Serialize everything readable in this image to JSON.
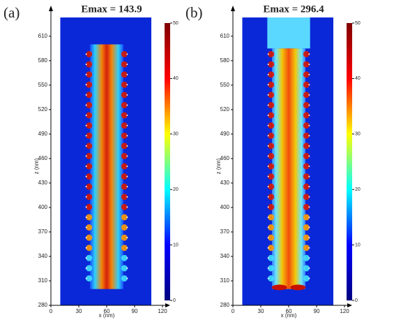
{
  "chart_data": [
    {
      "type": "heatmap",
      "panel": "(a)",
      "title": "Emax = 143.9",
      "xlabel": "x (nm)",
      "ylabel": "z (nm)",
      "xlim": [
        0,
        120
      ],
      "xticks": [
        0,
        30,
        60,
        90,
        120
      ],
      "ylim": [
        280,
        633
      ],
      "yticks": [
        280,
        310,
        340,
        370,
        400,
        430,
        460,
        490,
        520,
        550,
        580,
        610
      ],
      "clim": [
        0,
        50
      ],
      "cticks": [
        0,
        10,
        20,
        30,
        40,
        50
      ],
      "colors": [
        "#00007f",
        "#0000ff",
        "#00ffff",
        "#ffff00",
        "#ff0000",
        "#7f0000"
      ]
    },
    {
      "type": "heatmap",
      "panel": "(b)",
      "title": "Emax = 296.4",
      "xlabel": "x (nm)",
      "ylabel": "z (nm)",
      "xlim": [
        0,
        120
      ],
      "xticks": [
        0,
        30,
        60,
        90,
        120
      ],
      "ylim": [
        280,
        633
      ],
      "yticks": [
        280,
        310,
        340,
        370,
        400,
        430,
        460,
        490,
        520,
        550,
        580,
        610
      ],
      "clim": [
        0,
        50
      ],
      "cticks": [
        0,
        10,
        20,
        30,
        40,
        50
      ],
      "colors": [
        "#00007f",
        "#0000ff",
        "#00ffff",
        "#ffff00",
        "#ff0000",
        "#7f0000"
      ]
    }
  ]
}
